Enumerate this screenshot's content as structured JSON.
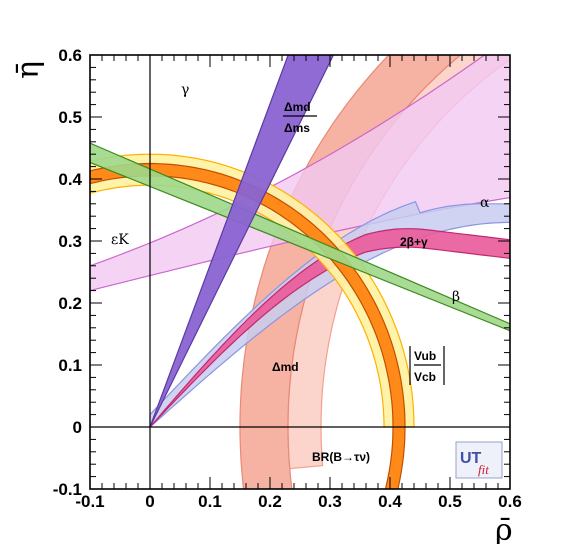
{
  "chart_data": {
    "type": "band-overlay",
    "xlabel": "ρ̄",
    "ylabel": "η̄",
    "xlim": [
      -0.1,
      0.6
    ],
    "ylim": [
      -0.1,
      0.6
    ],
    "xticks": [
      "-0.1",
      "0",
      "0.1",
      "0.2",
      "0.3",
      "0.4",
      "0.5",
      "0.6"
    ],
    "yticks": [
      "-0.1",
      "0",
      "0.1",
      "0.2",
      "0.3",
      "0.4",
      "0.5",
      "0.6"
    ],
    "constraints": [
      {
        "id": "gamma",
        "label": "γ",
        "color": "#8a63d2",
        "angle_deg_range": [
          63,
          69
        ]
      },
      {
        "id": "beta",
        "label": "β",
        "color": "#5aa02c",
        "beta_deg_range": [
          21.2,
          22.6
        ]
      },
      {
        "id": "alpha",
        "label": "α",
        "color": "#dd77dd"
      },
      {
        "id": "sin2beta_gamma",
        "label": "2β+γ",
        "color": "#e8408a"
      },
      {
        "id": "dmd",
        "label": "Δmd",
        "color": "#f0907a",
        "radius_range_from_1_0": [
          0.77,
          0.85
        ]
      },
      {
        "id": "dmd_dms",
        "label_top": "Δmd",
        "label_bottom": "Δms",
        "color": "#f4a090",
        "radius_range_from_1_0": [
          0.715,
          0.77
        ]
      },
      {
        "id": "vub_vcb",
        "label_top": "Vub",
        "label_bottom": "Vcb",
        "color": "#ffc000",
        "radius_range": [
          0.39,
          0.44
        ]
      },
      {
        "id": "br_b_taunu",
        "label": "BR(B→τν)",
        "color": "#ff8000",
        "radius_range": [
          0.405,
          0.425
        ]
      },
      {
        "id": "epsilon_k",
        "label": "εK",
        "color": "#9aa8e8"
      }
    ],
    "logo": {
      "text_main": "UT",
      "text_sub": "fit"
    }
  }
}
